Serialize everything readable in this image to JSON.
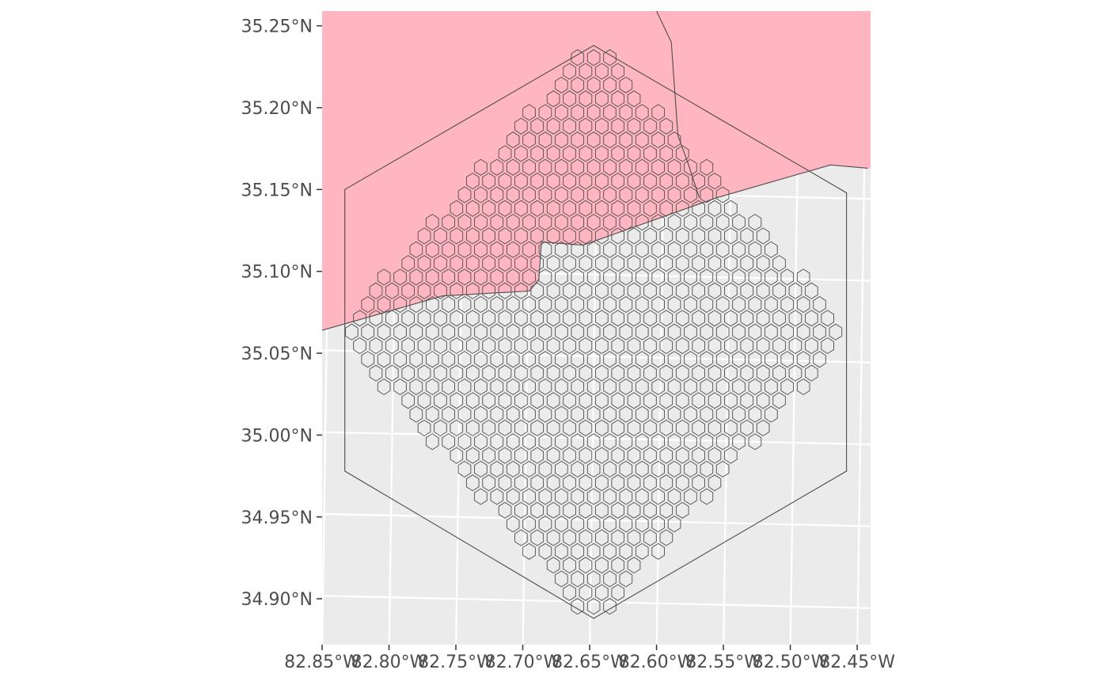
{
  "map": {
    "lon_range": [
      -82.85,
      -82.44
    ],
    "lat_range": [
      34.872,
      35.259
    ],
    "colors": {
      "panel_background": "#ebebeb",
      "grid_lines": "#ffffff",
      "region_fill": "#ffb6c1",
      "outline": "#4d4d4d",
      "hex_stroke": "#4d4d4d",
      "tick_text": "#4d4d4d"
    },
    "y_ticks": [
      {
        "value": 35.25,
        "label": "35.25°N"
      },
      {
        "value": 35.2,
        "label": "35.20°N"
      },
      {
        "value": 35.15,
        "label": "35.15°N"
      },
      {
        "value": 35.1,
        "label": "35.10°N"
      },
      {
        "value": 35.05,
        "label": "35.05°N"
      },
      {
        "value": 35.0,
        "label": "35.00°N"
      },
      {
        "value": 34.95,
        "label": "34.95°N"
      },
      {
        "value": 34.9,
        "label": "34.90°N"
      }
    ],
    "x_ticks": [
      {
        "value": -82.85,
        "label": "82.85°W"
      },
      {
        "value": -82.8,
        "label": "82.80°W"
      },
      {
        "value": -82.75,
        "label": "82.75°W"
      },
      {
        "value": -82.7,
        "label": "82.70°W"
      },
      {
        "value": -82.65,
        "label": "82.65°W"
      },
      {
        "value": -82.6,
        "label": "82.60°W"
      },
      {
        "value": -82.55,
        "label": "82.55°W"
      },
      {
        "value": -82.5,
        "label": "82.50°W"
      },
      {
        "value": -82.45,
        "label": "82.45°W"
      }
    ],
    "pink_region_boundary": [
      [
        -82.85,
        35.064
      ],
      [
        -82.76,
        35.085
      ],
      [
        -82.695,
        35.088
      ],
      [
        -82.688,
        35.095
      ],
      [
        -82.686,
        35.118
      ],
      [
        -82.655,
        35.116
      ],
      [
        -82.555,
        35.145
      ],
      [
        -82.47,
        35.165
      ],
      [
        -82.442,
        35.163
      ]
    ],
    "county_border": [
      [
        -82.6,
        35.259
      ],
      [
        -82.589,
        35.24
      ],
      [
        -82.584,
        35.183
      ],
      [
        -82.576,
        35.165
      ],
      [
        -82.568,
        35.145
      ]
    ],
    "study_area_outline": [
      [
        -82.647,
        35.238
      ],
      [
        -82.458,
        35.148
      ],
      [
        -82.458,
        34.978
      ],
      [
        -82.647,
        34.888
      ],
      [
        -82.833,
        34.978
      ],
      [
        -82.833,
        35.15
      ]
    ],
    "hex_grid": {
      "center_lon": -82.647,
      "center_lat": 35.063,
      "spacing_lon": 0.01206,
      "spacing_lat": 0.00838,
      "radius_lon": 0.00536,
      "half_height_lat": 0.00416,
      "lon_extent": 0.189,
      "lat_extent": 0.176
    }
  }
}
